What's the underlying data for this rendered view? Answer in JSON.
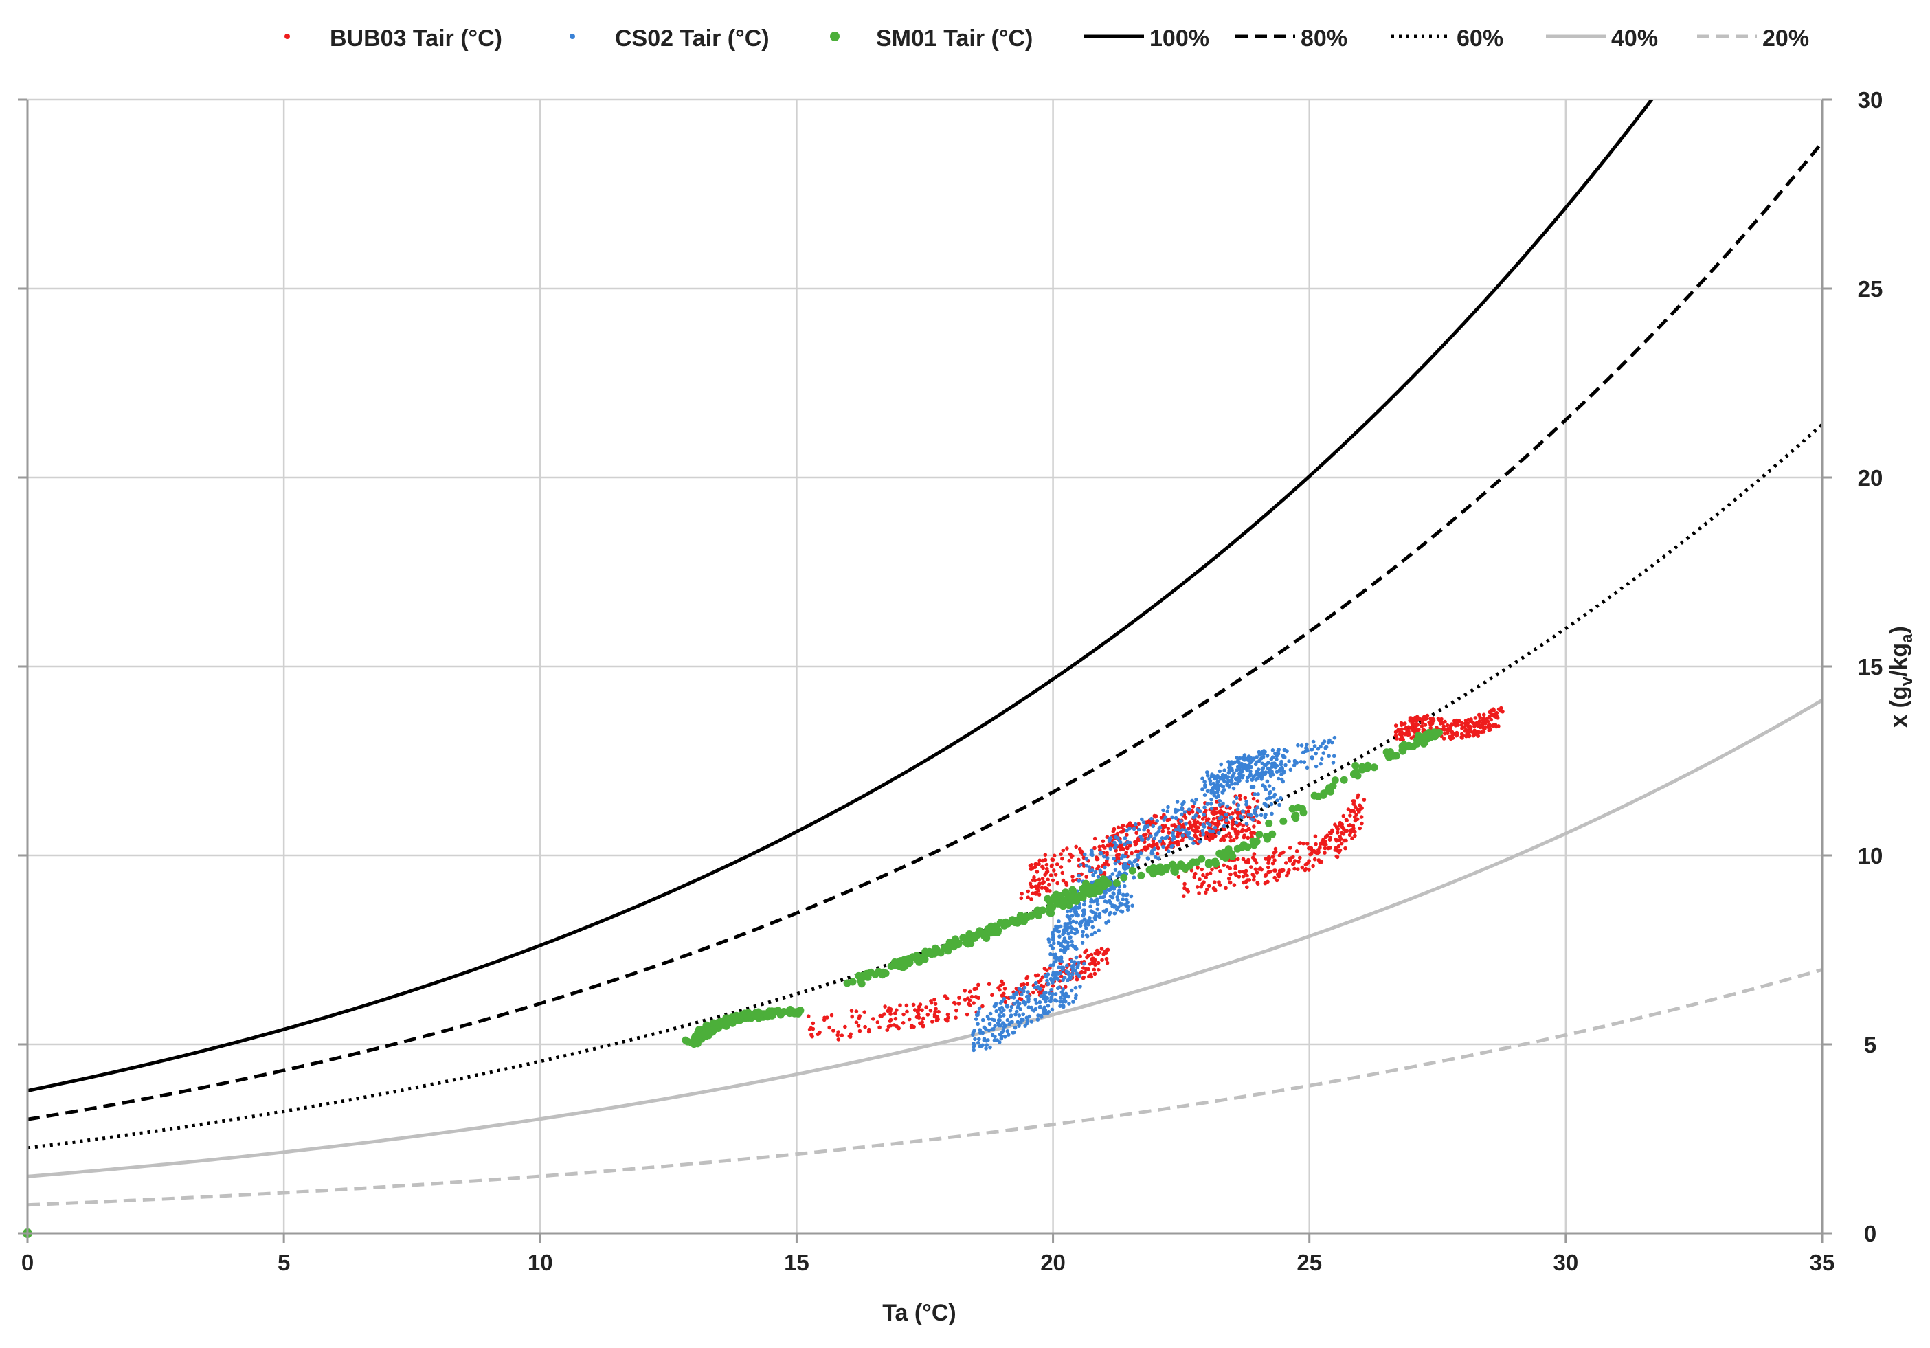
{
  "chart_data": {
    "type": "scatter",
    "xlabel": "Ta (°C)",
    "ylabel": "x (gv/kga)",
    "ylabel_parts": {
      "base": "x (g",
      "sub1": "v",
      "mid": "/kg",
      "sub2": "a",
      "end": ")"
    },
    "xlim": [
      0,
      35
    ],
    "ylim": [
      0,
      30
    ],
    "x_ticks": [
      0,
      5,
      10,
      15,
      20,
      25,
      30,
      35
    ],
    "y_ticks": [
      0,
      5,
      10,
      15,
      20,
      25,
      30
    ],
    "grid": true,
    "legend_position": "top",
    "pressure_kpa": 101.325,
    "scatter_series": [
      {
        "name": "BUB03 Tair (°C)",
        "color": "#ee1c1c",
        "marker": "dot-small",
        "segments": [
          {
            "x": [
              15.3,
              16.5,
              17.5,
              18.5,
              19.5,
              20.5,
              21.0
            ],
            "y": [
              5.4,
              5.6,
              5.8,
              6.2,
              6.5,
              7.0,
              7.3
            ],
            "spread": 0.35
          },
          {
            "x": [
              19.5,
              20.0,
              21.0,
              22.0,
              23.0,
              24.0
            ],
            "y": [
              9.3,
              9.6,
              10.0,
              10.5,
              10.9,
              11.2
            ],
            "spread": 0.5
          },
          {
            "x": [
              21.0,
              22.0,
              23.0,
              24.0
            ],
            "y": [
              10.2,
              10.6,
              10.8,
              10.9
            ],
            "spread": 0.45
          },
          {
            "x": [
              22.5,
              23.5,
              24.5,
              25.5,
              26.0
            ],
            "y": [
              9.3,
              9.5,
              9.8,
              10.3,
              11.3
            ],
            "spread": 0.4
          },
          {
            "x": [
              26.7,
              27.2,
              27.8,
              28.3,
              28.7
            ],
            "y": [
              13.2,
              13.5,
              13.3,
              13.4,
              13.7
            ],
            "spread": 0.25
          }
        ]
      },
      {
        "name": "CS02 Tair (°C)",
        "color": "#3a82d6",
        "marker": "dot-small",
        "segments": [
          {
            "x": [
              18.5,
              19.0,
              19.5,
              20.0,
              20.5
            ],
            "y": [
              5.3,
              5.6,
              6.0,
              6.4,
              6.8
            ],
            "spread": 0.55
          },
          {
            "x": [
              20.0,
              20.5,
              21.0,
              21.5
            ],
            "y": [
              7.5,
              8.2,
              8.8,
              9.2
            ],
            "spread": 0.55
          },
          {
            "x": [
              20.5,
              21.5,
              22.5,
              23.5,
              24.5
            ],
            "y": [
              9.5,
              10.2,
              10.8,
              11.3,
              11.8
            ],
            "spread": 0.6
          },
          {
            "x": [
              23.0,
              23.5,
              24.0,
              24.5,
              25.5
            ],
            "y": [
              11.8,
              12.2,
              12.4,
              12.5,
              12.8
            ],
            "spread": 0.35
          }
        ]
      },
      {
        "name": "SM01 Tair (°C)",
        "color": "#4caf3a",
        "marker": "dot-large",
        "segments": [
          {
            "x": [
              12.9,
              13.3,
              13.8,
              14.4,
              15.0
            ],
            "y": [
              5.0,
              5.4,
              5.7,
              5.8,
              5.9
            ],
            "spread": 0.08
          },
          {
            "x": [
              16.0,
              17.0,
              18.0,
              19.0,
              20.0,
              21.0
            ],
            "y": [
              6.6,
              7.1,
              7.6,
              8.1,
              8.6,
              9.2
            ],
            "spread": 0.1
          },
          {
            "x": [
              20.0,
              20.5,
              21.0,
              22.0,
              23.0,
              24.0,
              25.0,
              26.0,
              27.0,
              27.5
            ],
            "y": [
              8.8,
              9.0,
              9.3,
              9.6,
              9.8,
              10.4,
              11.4,
              12.3,
              12.9,
              13.3
            ],
            "spread": 0.12
          }
        ]
      }
    ],
    "rh_curves": [
      {
        "name": "100%",
        "rh": 100,
        "color": "#000000",
        "dash": "solid"
      },
      {
        "name": "80%",
        "rh": 80,
        "color": "#000000",
        "dash": "dash"
      },
      {
        "name": "60%",
        "rh": 60,
        "color": "#000000",
        "dash": "dot"
      },
      {
        "name": "40%",
        "rh": 40,
        "color": "#bfbfbf",
        "dash": "solid"
      },
      {
        "name": "20%",
        "rh": 20,
        "color": "#bfbfbf",
        "dash": "dash"
      }
    ],
    "extra_points": [
      {
        "series": "SM01 Tair (°C)",
        "x": 0,
        "y": 0
      }
    ]
  }
}
